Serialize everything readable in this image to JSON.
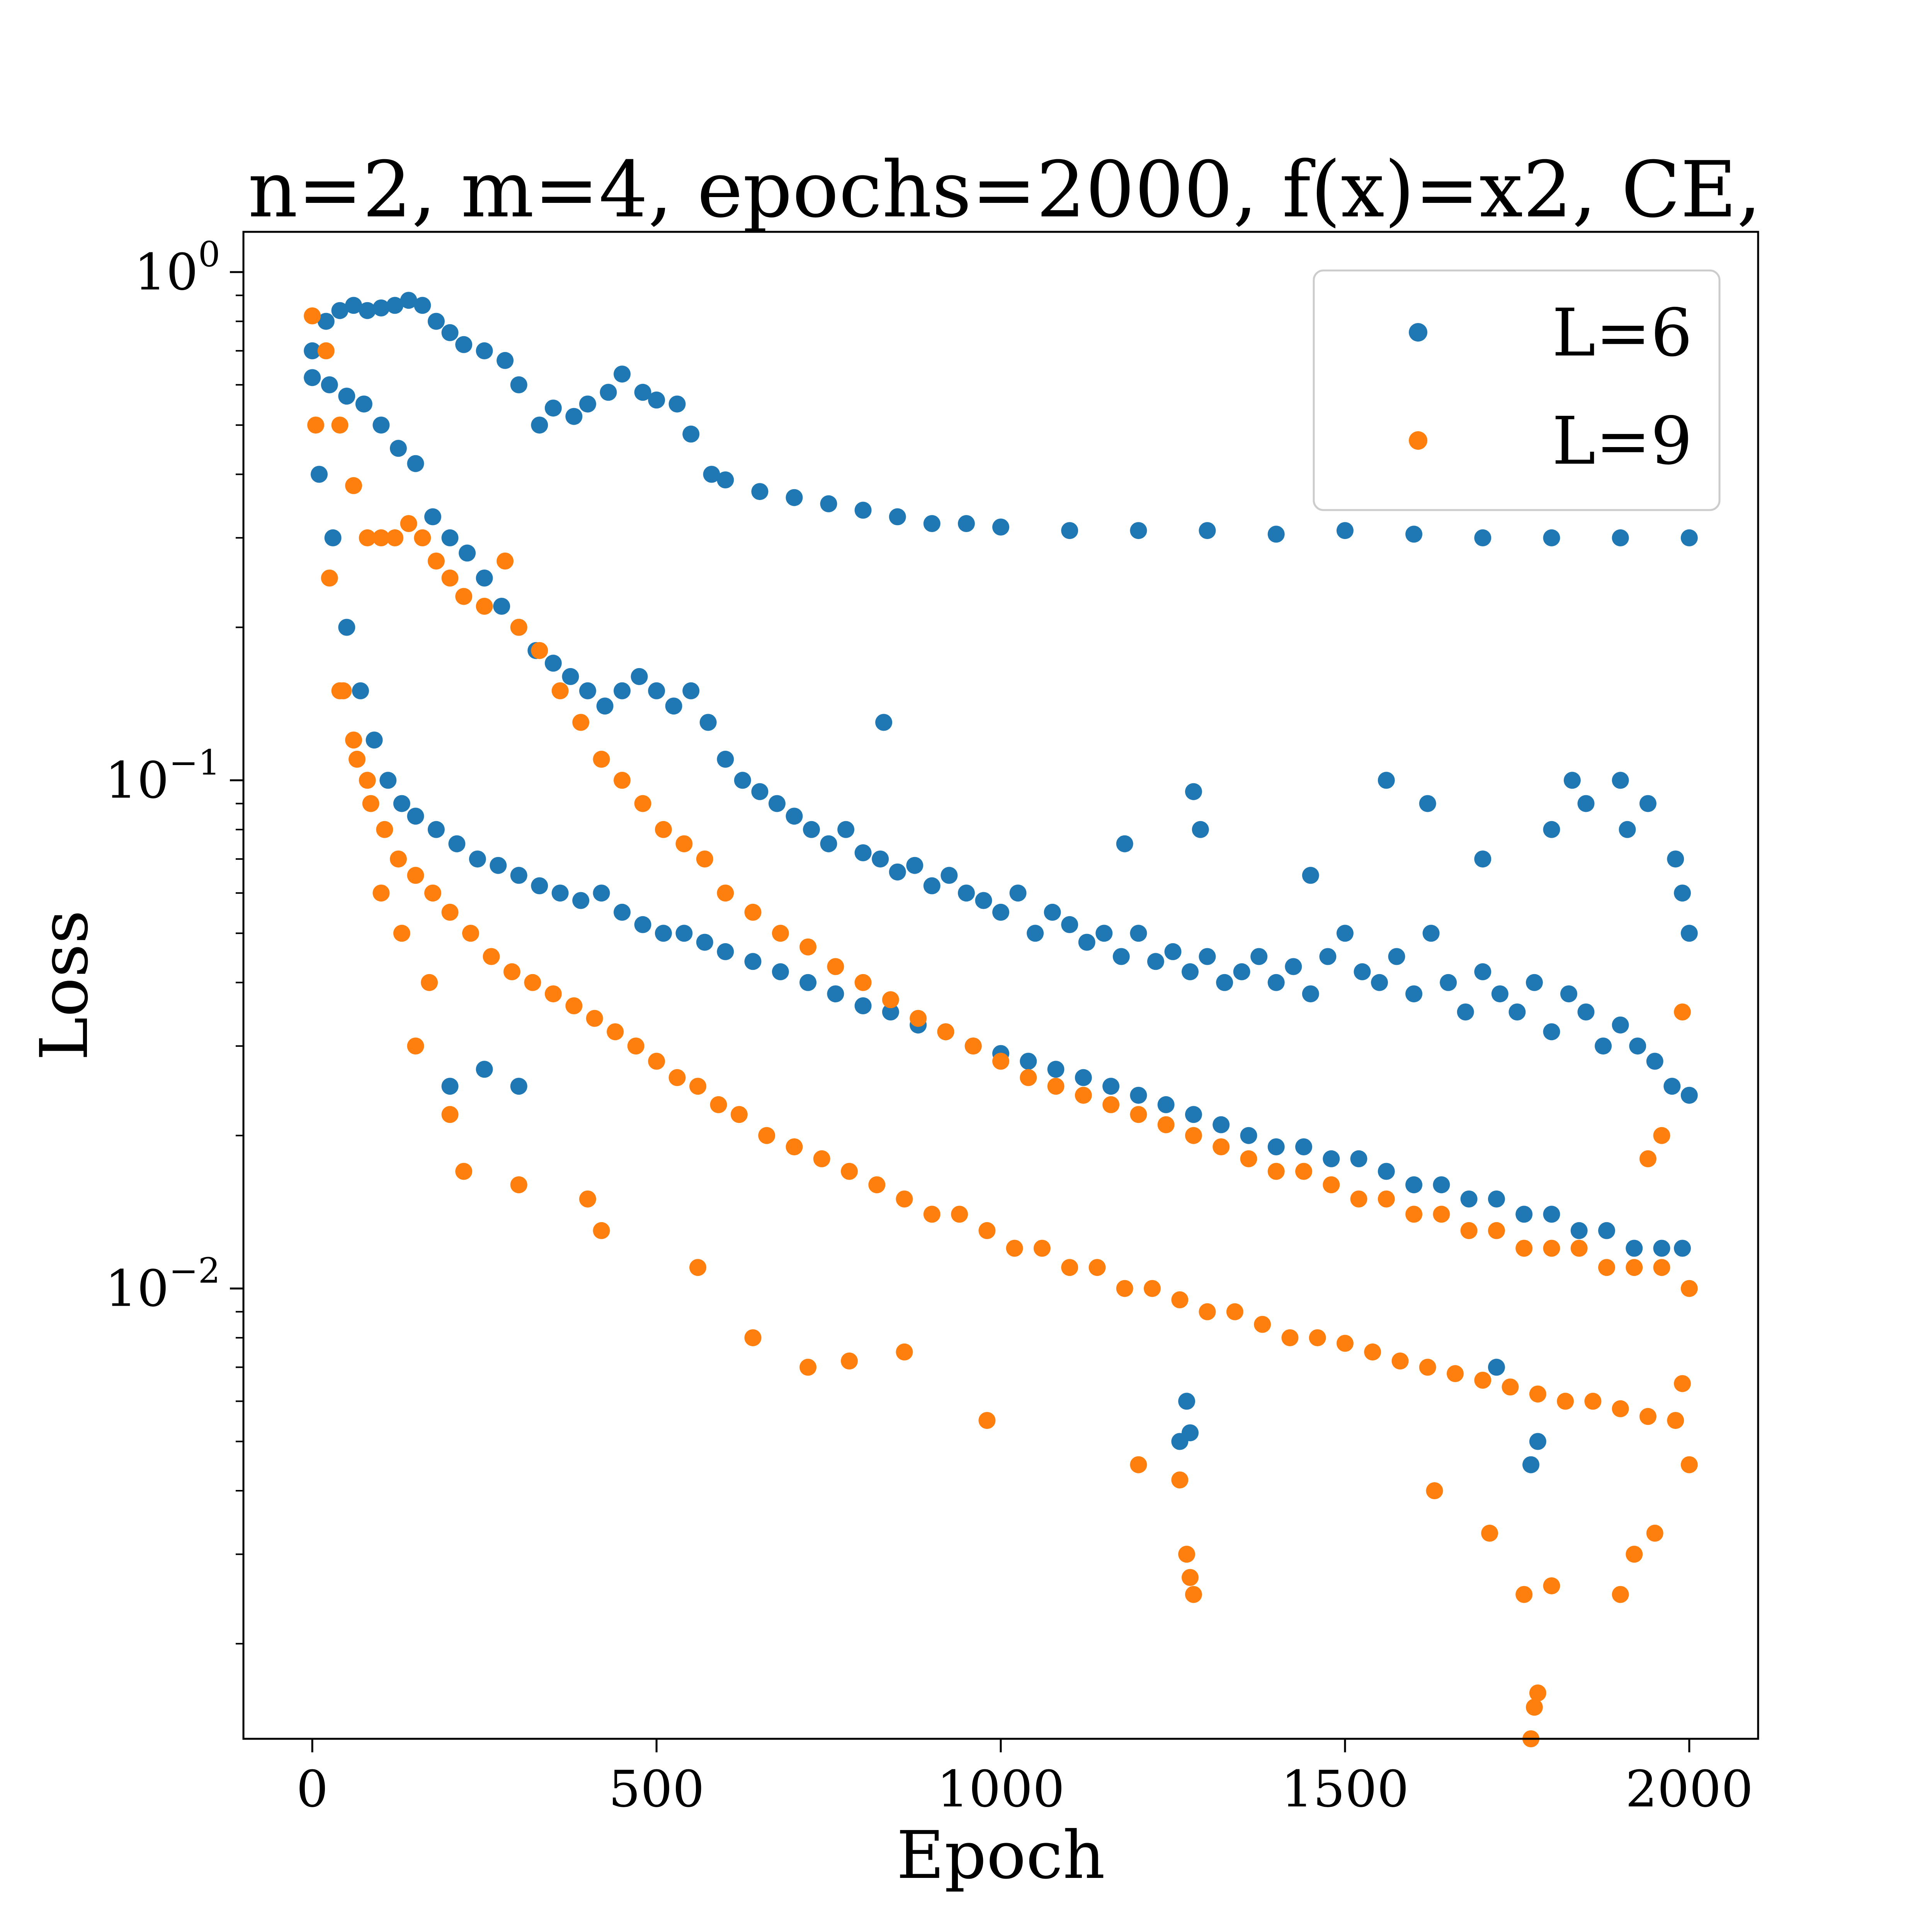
{
  "chart_data": {
    "type": "scatter",
    "title": "n=2, m=4, epochs=2000, f(x)=x2, CE,",
    "xlabel": "Epoch",
    "ylabel": "Loss",
    "xlim": [
      -100,
      2100
    ],
    "ylim": [
      0.0013,
      1.2
    ],
    "yscale": "log",
    "x_ticks": [
      0,
      500,
      1000,
      1500,
      2000
    ],
    "y_ticks": [
      {
        "value": 1,
        "base": "10",
        "exponent": "0"
      },
      {
        "value": 0.1,
        "base": "10",
        "exponent": "−1"
      },
      {
        "value": 0.01,
        "base": "10",
        "exponent": "−2"
      }
    ],
    "grid": false,
    "legend_position": "top-right",
    "series": [
      {
        "name": "L=6",
        "color": "#1f77b4",
        "groups": [
          {
            "x": [
              0,
              20,
              40,
              60,
              80,
              100,
              120,
              140,
              160,
              180,
              200,
              220,
              250,
              280,
              300,
              330,
              350,
              380,
              400,
              430,
              450,
              480,
              500,
              530,
              550,
              580,
              600,
              650,
              700,
              750,
              800,
              850,
              900,
              950,
              1000,
              1100,
              1200,
              1300,
              1400,
              1500,
              1600,
              1700,
              1800,
              1900,
              2000
            ],
            "y": [
              0.7,
              0.8,
              0.84,
              0.86,
              0.84,
              0.85,
              0.86,
              0.88,
              0.86,
              0.8,
              0.76,
              0.72,
              0.7,
              0.67,
              0.6,
              0.5,
              0.54,
              0.52,
              0.55,
              0.58,
              0.63,
              0.58,
              0.56,
              0.55,
              0.48,
              0.4,
              0.39,
              0.37,
              0.36,
              0.35,
              0.34,
              0.33,
              0.32,
              0.32,
              0.315,
              0.31,
              0.31,
              0.31,
              0.305,
              0.31,
              0.305,
              0.3,
              0.3,
              0.3,
              0.3
            ]
          },
          {
            "x": [
              0,
              25,
              50,
              75,
              100,
              125,
              150,
              175,
              200,
              225,
              250,
              275,
              300,
              325,
              350,
              375,
              400,
              425,
              450,
              475,
              500,
              525,
              550,
              575,
              600,
              625,
              650,
              675,
              700,
              725,
              750,
              775,
              800,
              825,
              850,
              875,
              900,
              925,
              950,
              975,
              1000,
              1025,
              1050,
              1075,
              1100,
              1125,
              1150,
              1175,
              1200,
              1225,
              1250,
              1275,
              1300,
              1325,
              1350,
              1375,
              1400,
              1425,
              1450,
              1475,
              1500,
              1525,
              1550,
              1575,
              1600,
              1625,
              1650,
              1675,
              1700,
              1725,
              1750,
              1775,
              1800,
              1825,
              1850,
              1875,
              1900,
              1925,
              1950,
              1975,
              2000
            ],
            "y": [
              0.62,
              0.6,
              0.57,
              0.55,
              0.5,
              0.45,
              0.42,
              0.33,
              0.3,
              0.28,
              0.25,
              0.22,
              0.2,
              0.18,
              0.17,
              0.16,
              0.15,
              0.14,
              0.15,
              0.16,
              0.15,
              0.14,
              0.15,
              0.13,
              0.11,
              0.1,
              0.095,
              0.09,
              0.085,
              0.08,
              0.075,
              0.08,
              0.072,
              0.07,
              0.066,
              0.068,
              0.062,
              0.065,
              0.06,
              0.058,
              0.055,
              0.06,
              0.05,
              0.055,
              0.052,
              0.048,
              0.05,
              0.045,
              0.05,
              0.044,
              0.046,
              0.042,
              0.045,
              0.04,
              0.042,
              0.045,
              0.04,
              0.043,
              0.038,
              0.045,
              0.05,
              0.042,
              0.04,
              0.045,
              0.038,
              0.05,
              0.04,
              0.035,
              0.042,
              0.038,
              0.035,
              0.04,
              0.032,
              0.038,
              0.035,
              0.03,
              0.033,
              0.03,
              0.028,
              0.025,
              0.024
            ]
          },
          {
            "x": [
              10,
              30,
              50,
              70,
              90,
              110,
              130,
              150,
              180,
              210,
              240,
              270,
              300,
              330,
              360,
              390,
              420,
              450,
              480,
              510,
              540,
              570,
              600,
              640,
              680,
              720,
              760,
              800,
              840,
              880,
              920,
              960,
              1000,
              1040,
              1080,
              1120,
              1160,
              1200,
              1240,
              1280,
              1320,
              1360,
              1400,
              1440,
              1480,
              1520,
              1560,
              1600,
              1640,
              1680,
              1720,
              1760,
              1800,
              1840,
              1880,
              1920,
              1960,
              1990
            ],
            "y": [
              0.4,
              0.3,
              0.2,
              0.15,
              0.12,
              0.1,
              0.09,
              0.085,
              0.08,
              0.075,
              0.07,
              0.068,
              0.065,
              0.062,
              0.06,
              0.058,
              0.06,
              0.055,
              0.052,
              0.05,
              0.05,
              0.048,
              0.046,
              0.044,
              0.042,
              0.04,
              0.038,
              0.036,
              0.035,
              0.033,
              0.032,
              0.03,
              0.029,
              0.028,
              0.027,
              0.026,
              0.025,
              0.024,
              0.023,
              0.022,
              0.021,
              0.02,
              0.019,
              0.019,
              0.018,
              0.018,
              0.017,
              0.016,
              0.016,
              0.015,
              0.015,
              0.014,
              0.014,
              0.013,
              0.013,
              0.012,
              0.012,
              0.012
            ]
          }
        ],
        "outliers": {
          "x": [
            830,
            1280,
            1290,
            1180,
            1260,
            1560,
            1620,
            1700,
            1800,
            1830,
            1850,
            1900,
            1910,
            1940,
            1980,
            1990,
            2000,
            1770,
            1780,
            1270,
            1275,
            1720,
            1450,
            200,
            250,
            300
          ],
          "y": [
            0.13,
            0.095,
            0.08,
            0.075,
            0.005,
            0.1,
            0.09,
            0.07,
            0.08,
            0.1,
            0.09,
            0.1,
            0.08,
            0.09,
            0.07,
            0.06,
            0.05,
            0.0045,
            0.005,
            0.006,
            0.0052,
            0.007,
            0.065,
            0.025,
            0.027,
            0.025
          ]
        }
      },
      {
        "name": "L=9",
        "color": "#ff7f0e",
        "groups": [
          {
            "x": [
              0,
              20,
              40,
              60,
              80,
              100,
              120,
              140,
              160,
              180,
              200,
              220,
              250,
              280,
              300,
              330,
              360,
              390,
              420,
              450,
              480,
              510,
              540,
              570,
              600,
              640,
              680,
              720,
              760,
              800,
              840,
              880,
              920,
              960,
              1000,
              1040,
              1080,
              1120,
              1160,
              1200,
              1240,
              1280,
              1320,
              1360,
              1400,
              1440,
              1480,
              1520,
              1560,
              1600,
              1640,
              1680,
              1720,
              1760,
              1800,
              1840,
              1880,
              1920,
              1960,
              2000
            ],
            "y": [
              0.82,
              0.7,
              0.5,
              0.38,
              0.3,
              0.3,
              0.3,
              0.32,
              0.3,
              0.27,
              0.25,
              0.23,
              0.22,
              0.27,
              0.2,
              0.18,
              0.15,
              0.13,
              0.11,
              0.1,
              0.09,
              0.08,
              0.075,
              0.07,
              0.06,
              0.055,
              0.05,
              0.047,
              0.043,
              0.04,
              0.037,
              0.034,
              0.032,
              0.03,
              0.028,
              0.026,
              0.025,
              0.024,
              0.023,
              0.022,
              0.021,
              0.02,
              0.019,
              0.018,
              0.017,
              0.017,
              0.016,
              0.015,
              0.015,
              0.014,
              0.014,
              0.013,
              0.013,
              0.012,
              0.012,
              0.012,
              0.011,
              0.011,
              0.011,
              0.01
            ]
          },
          {
            "x": [
              5,
              25,
              45,
              65,
              85,
              105,
              125,
              150,
              175,
              200,
              230,
              260,
              290,
              320,
              350,
              380,
              410,
              440,
              470,
              500,
              530,
              560,
              590,
              620,
              660,
              700,
              740,
              780,
              820,
              860,
              900,
              940,
              980,
              1020,
              1060,
              1100,
              1140,
              1180,
              1220,
              1260,
              1300,
              1340,
              1380,
              1420,
              1460,
              1500,
              1540,
              1580,
              1620,
              1660,
              1700,
              1740,
              1780,
              1820,
              1860,
              1900,
              1940,
              1980
            ],
            "y": [
              0.5,
              0.25,
              0.15,
              0.11,
              0.09,
              0.08,
              0.07,
              0.065,
              0.06,
              0.055,
              0.05,
              0.045,
              0.042,
              0.04,
              0.038,
              0.036,
              0.034,
              0.032,
              0.03,
              0.028,
              0.026,
              0.025,
              0.023,
              0.022,
              0.02,
              0.019,
              0.018,
              0.017,
              0.016,
              0.015,
              0.014,
              0.014,
              0.013,
              0.012,
              0.012,
              0.011,
              0.011,
              0.01,
              0.01,
              0.0095,
              0.009,
              0.009,
              0.0085,
              0.008,
              0.008,
              0.0078,
              0.0075,
              0.0072,
              0.007,
              0.0068,
              0.0066,
              0.0064,
              0.0062,
              0.006,
              0.006,
              0.0058,
              0.0056,
              0.0055
            ]
          }
        ],
        "outliers": {
          "x": [
            1770,
            1775,
            1780,
            1280,
            1275,
            1270,
            1200,
            1260,
            1900,
            1920,
            1950,
            1990,
            1760,
            1800,
            1710,
            1630,
            980,
            860,
            780,
            720,
            640,
            560,
            420,
            400,
            300,
            220,
            200,
            170,
            150,
            130,
            100,
            80,
            60,
            40,
            2000,
            1990,
            1960,
            1940
          ],
          "y": [
            0.0013,
            0.0015,
            0.0016,
            0.0025,
            0.0027,
            0.003,
            0.0045,
            0.0042,
            0.0025,
            0.003,
            0.0033,
            0.035,
            0.0025,
            0.0026,
            0.0033,
            0.004,
            0.0055,
            0.0075,
            0.0072,
            0.007,
            0.008,
            0.011,
            0.013,
            0.015,
            0.016,
            0.017,
            0.022,
            0.04,
            0.03,
            0.05,
            0.06,
            0.1,
            0.12,
            0.15,
            0.0045,
            0.0065,
            0.02,
            0.018
          ]
        }
      }
    ]
  }
}
